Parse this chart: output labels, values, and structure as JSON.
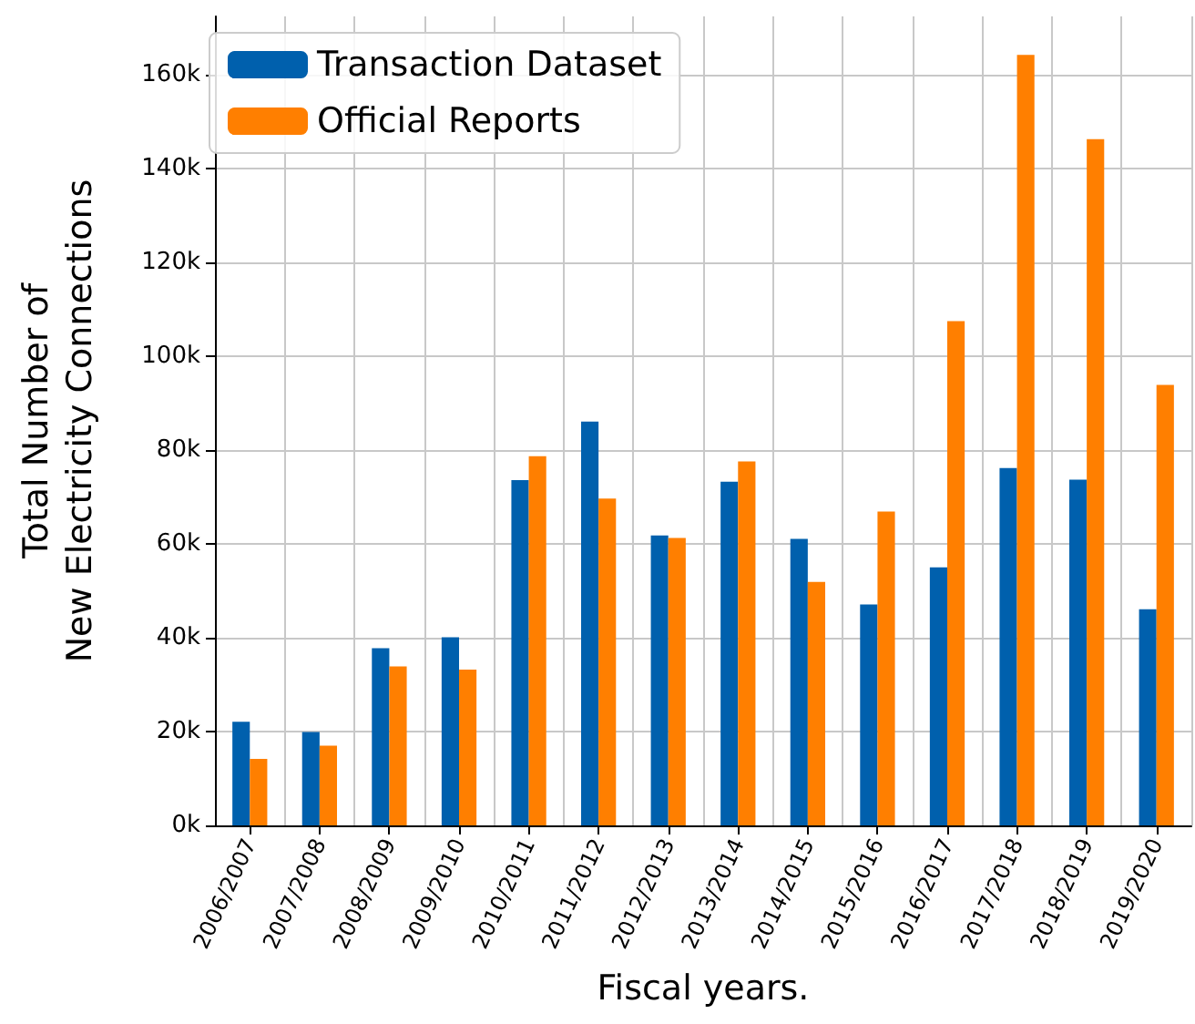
{
  "chart_data": {
    "type": "bar",
    "xlabel": "Fiscal years.",
    "ylabel": "Total Number of\nNew Electricity Connections",
    "categories": [
      "2006/2007",
      "2007/2008",
      "2008/2009",
      "2009/2010",
      "2010/2011",
      "2011/2012",
      "2012/2013",
      "2013/2014",
      "2014/2015",
      "2015/2016",
      "2016/2017",
      "2017/2018",
      "2018/2019",
      "2019/2020"
    ],
    "series": [
      {
        "name": "Transaction Dataset",
        "color": "#0060ad",
        "values": [
          22100,
          19900,
          37800,
          40100,
          73600,
          86100,
          61800,
          73300,
          61100,
          47100,
          55000,
          76200,
          73700,
          46100
        ]
      },
      {
        "name": "Official Reports",
        "color": "#ff7f00",
        "values": [
          14200,
          17000,
          33900,
          33200,
          78700,
          69700,
          61300,
          77600,
          51900,
          66900,
          107500,
          164300,
          146300,
          93900
        ]
      }
    ],
    "ylim": [
      0,
      172500
    ],
    "yticks": [
      {
        "value": 0,
        "label": "0k"
      },
      {
        "value": 20000,
        "label": "20k"
      },
      {
        "value": 40000,
        "label": "40k"
      },
      {
        "value": 60000,
        "label": "60k"
      },
      {
        "value": 80000,
        "label": "80k"
      },
      {
        "value": 100000,
        "label": "100k"
      },
      {
        "value": 120000,
        "label": "120k"
      },
      {
        "value": 140000,
        "label": "140k"
      },
      {
        "value": 160000,
        "label": "160k"
      }
    ],
    "grid": true,
    "legend": "top left"
  }
}
